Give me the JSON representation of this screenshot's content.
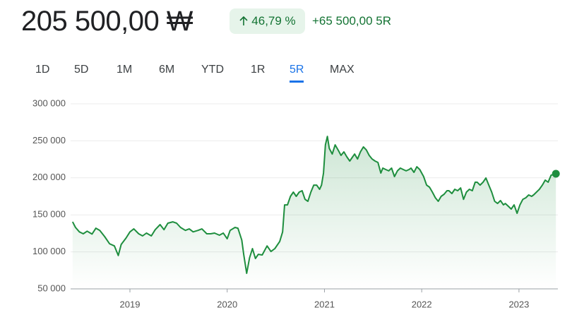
{
  "header": {
    "price": "205 500,00 ₩",
    "change_percent": "46,79 %",
    "change_abs": "+65 500,00 5R"
  },
  "tabs": [
    "1D",
    "5D",
    "1M",
    "6M",
    "YTD",
    "1R",
    "5R",
    "MAX"
  ],
  "selected_tab": "5R",
  "chart_data": {
    "type": "line",
    "grid": true,
    "x": [
      2018.41,
      2018.44,
      2018.48,
      2018.52,
      2018.56,
      2018.61,
      2018.65,
      2018.69,
      2018.74,
      2018.79,
      2018.84,
      2018.88,
      2018.91,
      2018.96,
      2019.0,
      2019.04,
      2019.09,
      2019.13,
      2019.17,
      2019.22,
      2019.26,
      2019.31,
      2019.35,
      2019.39,
      2019.44,
      2019.48,
      2019.52,
      2019.57,
      2019.61,
      2019.65,
      2019.7,
      2019.74,
      2019.79,
      2019.83,
      2019.87,
      2019.92,
      2019.96,
      2020.0,
      2020.03,
      2020.08,
      2020.11,
      2020.15,
      2020.17,
      2020.2,
      2020.23,
      2020.26,
      2020.29,
      2020.32,
      2020.36,
      2020.41,
      2020.45,
      2020.49,
      2020.54,
      2020.57,
      2020.59,
      2020.62,
      2020.65,
      2020.68,
      2020.71,
      2020.74,
      2020.77,
      2020.8,
      2020.83,
      2020.86,
      2020.89,
      2020.92,
      2020.95,
      2020.97,
      2020.99,
      2021.01,
      2021.03,
      2021.05,
      2021.08,
      2021.11,
      2021.14,
      2021.17,
      2021.2,
      2021.23,
      2021.26,
      2021.29,
      2021.31,
      2021.34,
      2021.37,
      2021.4,
      2021.43,
      2021.46,
      2021.49,
      2021.52,
      2021.55,
      2021.58,
      2021.6,
      2021.63,
      2021.66,
      2021.69,
      2021.72,
      2021.75,
      2021.78,
      2021.81,
      2021.84,
      2021.87,
      2021.89,
      2021.92,
      2021.95,
      2021.98,
      2022.02,
      2022.05,
      2022.08,
      2022.11,
      2022.14,
      2022.17,
      2022.2,
      2022.23,
      2022.26,
      2022.28,
      2022.31,
      2022.34,
      2022.37,
      2022.4,
      2022.43,
      2022.46,
      2022.49,
      2022.52,
      2022.55,
      2022.57,
      2022.6,
      2022.63,
      2022.66,
      2022.69,
      2022.72,
      2022.75,
      2022.78,
      2022.81,
      2022.84,
      2022.86,
      2022.89,
      2022.92,
      2022.95,
      2022.98,
      2023.01,
      2023.04,
      2023.07,
      2023.1,
      2023.13,
      2023.15,
      2023.18,
      2023.21,
      2023.24,
      2023.27,
      2023.3,
      2023.33,
      2023.36,
      2023.38
    ],
    "series": [
      {
        "color": "#1e8e3e",
        "values": [
          140600,
          133000,
          127000,
          124400,
          128000,
          124000,
          132000,
          129000,
          120600,
          111000,
          108000,
          95000,
          110000,
          118700,
          127000,
          131000,
          124400,
          121600,
          125400,
          121600,
          130000,
          136800,
          130000,
          138700,
          140600,
          138700,
          133000,
          129000,
          131000,
          127000,
          129000,
          131000,
          124400,
          124400,
          125400,
          122500,
          125400,
          117700,
          129000,
          133000,
          132000,
          115800,
          96700,
          71000,
          92000,
          104400,
          91000,
          96700,
          95800,
          108000,
          100500,
          104400,
          114000,
          127000,
          163500,
          163500,
          175000,
          180700,
          175000,
          180700,
          182600,
          171000,
          168300,
          180700,
          190200,
          190200,
          184500,
          190200,
          206500,
          244600,
          256000,
          239800,
          232200,
          244600,
          237800,
          230300,
          235100,
          228400,
          222700,
          228400,
          232200,
          225500,
          235100,
          241800,
          237800,
          230300,
          225500,
          222700,
          220800,
          206500,
          213200,
          211300,
          209400,
          213200,
          201700,
          209400,
          213200,
          211300,
          209400,
          211300,
          213200,
          207400,
          215000,
          211300,
          201700,
          190200,
          187400,
          180700,
          173100,
          168300,
          175000,
          177900,
          182600,
          182600,
          178800,
          184500,
          182600,
          186400,
          171000,
          180700,
          184500,
          182600,
          194100,
          194100,
          190200,
          194100,
          199800,
          190200,
          180700,
          168300,
          165400,
          169300,
          163500,
          165400,
          161600,
          157800,
          163500,
          152100,
          163500,
          171000,
          173100,
          176900,
          175000,
          176900,
          180700,
          184500,
          190200,
          196900,
          194100,
          203600,
          204600,
          205500
        ]
      }
    ],
    "xlim": [
      2018.39,
      2023.4
    ],
    "xticks": [
      2019,
      2020,
      2021,
      2022,
      2023
    ],
    "ylim": [
      50000,
      300000
    ],
    "yticks": [
      {
        "value": 50000,
        "label": "50 000"
      },
      {
        "value": 100000,
        "label": "100 000"
      },
      {
        "value": 150000,
        "label": "150 000"
      },
      {
        "value": 200000,
        "label": "200 000"
      },
      {
        "value": 250000,
        "label": "250 000"
      },
      {
        "value": 300000,
        "label": "300 000"
      }
    ]
  }
}
